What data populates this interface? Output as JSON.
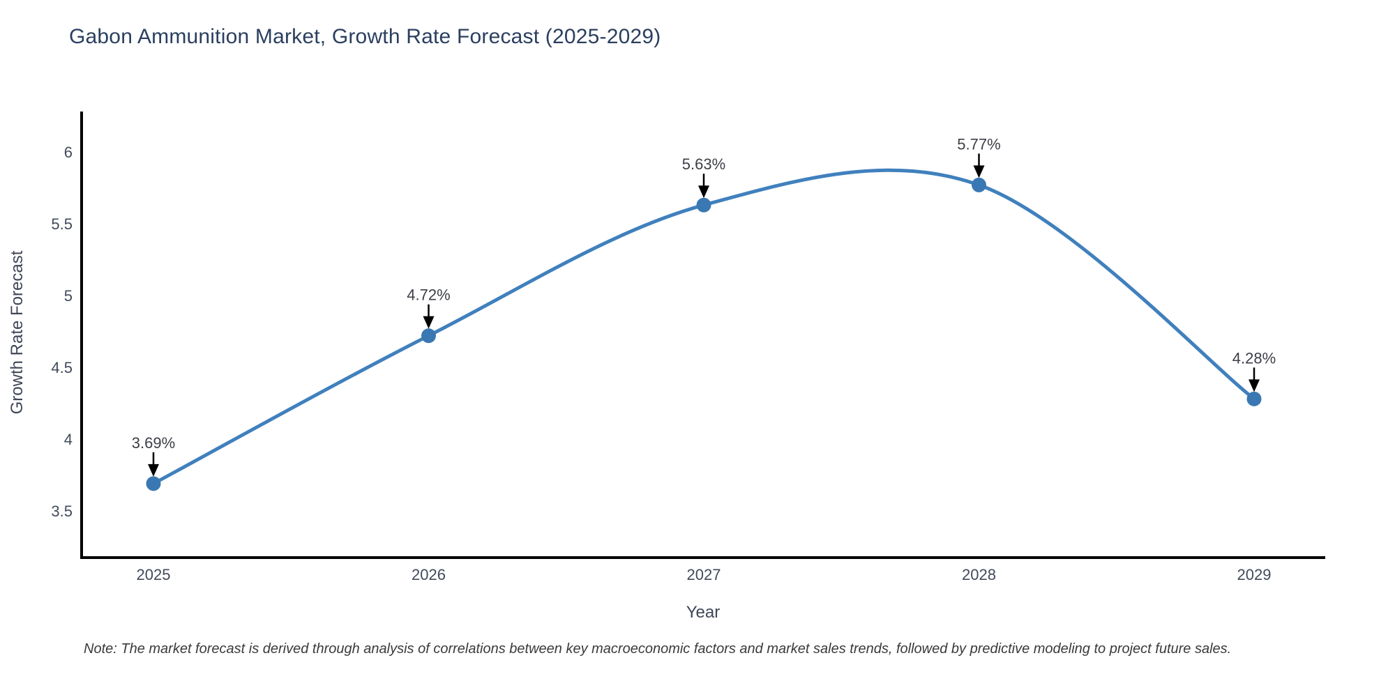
{
  "title": "Gabon Ammunition Market, Growth Rate Forecast (2025-2029)",
  "note": "Note: The market forecast is derived through analysis of correlations between key macroeconomic factors and market sales trends, followed by predictive modeling to project future sales.",
  "chart_data": {
    "type": "line",
    "line_shape": "spline",
    "title": "Gabon Ammunition Market, Growth Rate Forecast (2025-2029)",
    "xlabel": "Year",
    "ylabel": "Growth Rate Forecast",
    "categories": [
      "2025",
      "2026",
      "2027",
      "2028",
      "2029"
    ],
    "series": [
      {
        "name": "Growth Rate Forecast",
        "values": [
          3.69,
          4.72,
          5.63,
          5.77,
          4.28
        ]
      }
    ],
    "point_labels": [
      "3.69%",
      "4.72%",
      "5.63%",
      "5.77%",
      "4.28%"
    ],
    "yticks": [
      "3.5",
      "4",
      "4.5",
      "5",
      "5.5",
      "6"
    ],
    "ylim": [
      3.17,
      6.28
    ],
    "grid": false,
    "legend": "none",
    "colors": {
      "line": "#4080bd",
      "marker": "#3a78b3",
      "axis": "#000000",
      "annotation_text": "#3d3f47",
      "annotation_arrow": "#000000",
      "tick_text": "#424a5a",
      "title_text": "#2a3f5f"
    }
  }
}
